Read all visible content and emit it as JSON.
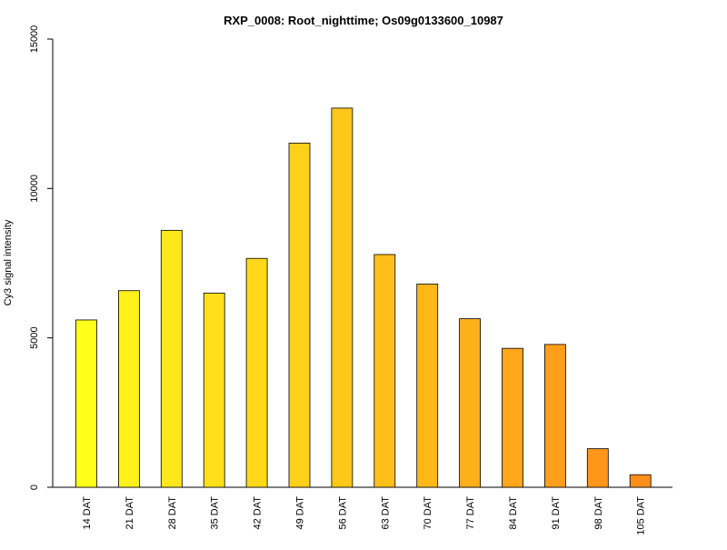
{
  "chart_data": {
    "type": "bar",
    "title": "RXP_0008: Root_nighttime; Os09g0133600_10987",
    "xlabel": "",
    "ylabel": "Cy3 signal intensity",
    "ylim": [
      0,
      15000
    ],
    "yticks": [
      0,
      5000,
      10000,
      15000
    ],
    "grid": false,
    "categories": [
      "14 DAT",
      "21 DAT",
      "28 DAT",
      "35 DAT",
      "42 DAT",
      "49 DAT",
      "56 DAT",
      "63 DAT",
      "70 DAT",
      "77 DAT",
      "84 DAT",
      "91 DAT",
      "98 DAT",
      "105 DAT"
    ],
    "values": [
      5600,
      6580,
      8600,
      6500,
      7660,
      11520,
      12690,
      7790,
      6800,
      5640,
      4650,
      4780,
      1290,
      420
    ],
    "colors": [
      "#ffff1a",
      "#fff11a",
      "#ffe81a",
      "#ffe01a",
      "#ffd81a",
      "#ffd01a",
      "#ffc71a",
      "#ffbf1a",
      "#ffb71a",
      "#ffaf1a",
      "#ffa61a",
      "#ff9e1a",
      "#ff961a",
      "#ff8e1a"
    ]
  }
}
